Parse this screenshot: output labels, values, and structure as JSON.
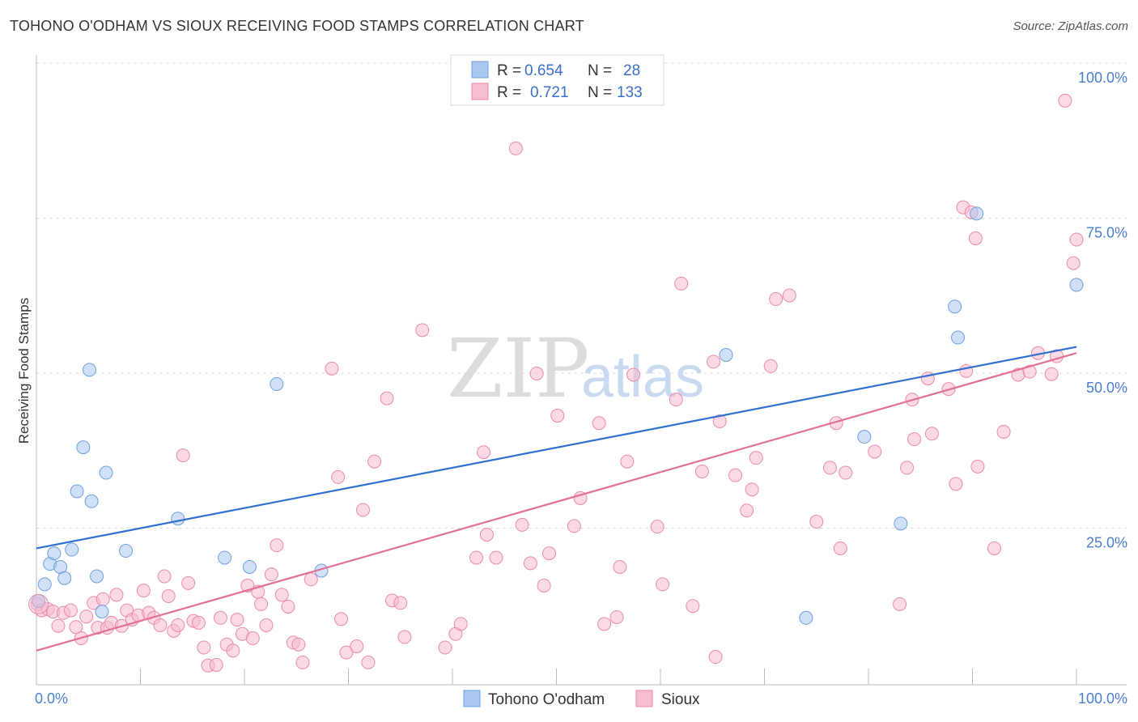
{
  "title": "TOHONO O'ODHAM VS SIOUX RECEIVING FOOD STAMPS CORRELATION CHART",
  "source": "Source: ZipAtlas.com",
  "watermark": {
    "zip": "ZIP",
    "atlas": "atlas"
  },
  "legend": {
    "r_label": "R =",
    "n_label": "N =",
    "rows": [
      {
        "name": "Tohono O'odham",
        "r": "0.654",
        "n": "28",
        "color": "#a9c8f0",
        "stroke": "#6f9fdc"
      },
      {
        "name": "Sioux",
        "r": "0.721",
        "n": "133",
        "color": "#f7bcd0",
        "stroke": "#e98aaa"
      }
    ]
  },
  "chart_data": {
    "type": "scatter",
    "title": "TOHONO O'ODHAM VS SIOUX RECEIVING FOOD STAMPS CORRELATION CHART",
    "xlabel": "",
    "ylabel": "Receiving Food Stamps",
    "xlim": [
      0,
      100
    ],
    "ylim": [
      0,
      100
    ],
    "x_tick_labels": [
      "0.0%",
      "100.0%"
    ],
    "y_ticks": [
      25,
      50,
      75,
      100
    ],
    "y_tick_labels": [
      "25.0%",
      "50.0%",
      "75.0%",
      "100.0%"
    ],
    "grid": true,
    "series": [
      {
        "name": "Tohono O'odham",
        "color": "#a9c8f0",
        "line_color": "#2f6fcf",
        "trend": {
          "x": [
            0,
            100
          ],
          "y": [
            22,
            54.5
          ]
        },
        "points": [
          [
            0.2,
            13.5
          ],
          [
            0.8,
            16.2
          ],
          [
            1.3,
            19.5
          ],
          [
            1.7,
            21.2
          ],
          [
            2.3,
            19.0
          ],
          [
            2.7,
            17.2
          ],
          [
            3.4,
            21.8
          ],
          [
            3.9,
            31.2
          ],
          [
            4.5,
            38.3
          ],
          [
            5.1,
            50.8
          ],
          [
            5.3,
            29.6
          ],
          [
            5.8,
            17.5
          ],
          [
            6.3,
            11.8
          ],
          [
            6.7,
            34.2
          ],
          [
            8.6,
            21.6
          ],
          [
            13.6,
            26.8
          ],
          [
            18.1,
            20.5
          ],
          [
            20.5,
            19.0
          ],
          [
            23.1,
            48.5
          ],
          [
            27.4,
            18.4
          ],
          [
            66.3,
            53.2
          ],
          [
            74.0,
            10.8
          ],
          [
            79.6,
            40.0
          ],
          [
            83.1,
            26.0
          ],
          [
            88.3,
            61.0
          ],
          [
            88.6,
            56.0
          ],
          [
            90.4,
            76.0
          ],
          [
            100.0,
            64.5
          ]
        ]
      },
      {
        "name": "Sioux",
        "color": "#f7bcd0",
        "line_color": "#e0709a",
        "trend": {
          "x": [
            0,
            100
          ],
          "y": [
            5.5,
            53.5
          ]
        },
        "points": [
          [
            0.1,
            13.0
          ],
          [
            0.5,
            12.0
          ],
          [
            1.1,
            12.2
          ],
          [
            1.6,
            11.8
          ],
          [
            2.1,
            9.5
          ],
          [
            2.6,
            11.6
          ],
          [
            3.3,
            12.0
          ],
          [
            3.8,
            9.3
          ],
          [
            4.3,
            7.5
          ],
          [
            4.8,
            11.0
          ],
          [
            5.5,
            13.2
          ],
          [
            5.9,
            9.2
          ],
          [
            6.4,
            13.8
          ],
          [
            6.8,
            9.2
          ],
          [
            7.2,
            10.0
          ],
          [
            7.7,
            14.5
          ],
          [
            8.2,
            9.5
          ],
          [
            8.7,
            12.0
          ],
          [
            9.2,
            10.5
          ],
          [
            9.8,
            11.2
          ],
          [
            10.3,
            15.2
          ],
          [
            10.8,
            11.6
          ],
          [
            11.3,
            10.8
          ],
          [
            11.9,
            9.6
          ],
          [
            12.3,
            17.5
          ],
          [
            12.7,
            14.3
          ],
          [
            13.2,
            8.7
          ],
          [
            13.6,
            9.6
          ],
          [
            14.1,
            37.0
          ],
          [
            14.6,
            16.4
          ],
          [
            15.1,
            10.3
          ],
          [
            15.6,
            10.0
          ],
          [
            16.1,
            6.0
          ],
          [
            16.5,
            3.1
          ],
          [
            17.3,
            3.2
          ],
          [
            17.7,
            10.8
          ],
          [
            18.3,
            6.5
          ],
          [
            18.9,
            5.5
          ],
          [
            19.3,
            10.5
          ],
          [
            19.8,
            8.2
          ],
          [
            20.3,
            16.0
          ],
          [
            20.8,
            7.5
          ],
          [
            21.3,
            15.0
          ],
          [
            21.6,
            13.0
          ],
          [
            22.1,
            9.6
          ],
          [
            22.6,
            17.8
          ],
          [
            23.1,
            22.5
          ],
          [
            23.6,
            14.5
          ],
          [
            24.2,
            12.6
          ],
          [
            24.7,
            6.8
          ],
          [
            25.2,
            6.5
          ],
          [
            25.6,
            3.6
          ],
          [
            26.4,
            17.0
          ],
          [
            28.4,
            51.0
          ],
          [
            29.0,
            33.5
          ],
          [
            29.3,
            10.6
          ],
          [
            29.8,
            5.2
          ],
          [
            30.8,
            6.2
          ],
          [
            31.4,
            28.2
          ],
          [
            31.9,
            3.6
          ],
          [
            32.5,
            36.0
          ],
          [
            33.7,
            46.2
          ],
          [
            34.2,
            13.6
          ],
          [
            35.0,
            13.2
          ],
          [
            35.4,
            7.7
          ],
          [
            37.1,
            57.2
          ],
          [
            39.3,
            6.0
          ],
          [
            40.3,
            8.2
          ],
          [
            40.8,
            9.8
          ],
          [
            42.3,
            20.5
          ],
          [
            43.0,
            37.5
          ],
          [
            43.3,
            24.2
          ],
          [
            44.2,
            20.5
          ],
          [
            46.1,
            86.5
          ],
          [
            46.7,
            25.8
          ],
          [
            47.5,
            19.6
          ],
          [
            48.1,
            50.2
          ],
          [
            48.8,
            16.0
          ],
          [
            49.3,
            21.2
          ],
          [
            50.1,
            43.4
          ],
          [
            51.7,
            25.6
          ],
          [
            52.3,
            30.1
          ],
          [
            54.1,
            42.2
          ],
          [
            54.6,
            9.8
          ],
          [
            55.8,
            10.9
          ],
          [
            56.1,
            19.0
          ],
          [
            56.8,
            36.0
          ],
          [
            57.4,
            50.0
          ],
          [
            59.7,
            25.5
          ],
          [
            60.2,
            16.2
          ],
          [
            61.5,
            46.0
          ],
          [
            62.0,
            64.7
          ],
          [
            63.1,
            12.7
          ],
          [
            64.0,
            34.4
          ],
          [
            65.1,
            52.1
          ],
          [
            65.3,
            4.5
          ],
          [
            65.7,
            42.5
          ],
          [
            67.2,
            33.8
          ],
          [
            68.3,
            28.1
          ],
          [
            68.8,
            31.5
          ],
          [
            69.2,
            36.6
          ],
          [
            70.6,
            51.4
          ],
          [
            71.1,
            62.2
          ],
          [
            72.4,
            62.8
          ],
          [
            75.0,
            26.3
          ],
          [
            76.3,
            35.0
          ],
          [
            76.9,
            42.2
          ],
          [
            77.3,
            22.0
          ],
          [
            77.8,
            34.2
          ],
          [
            80.6,
            37.6
          ],
          [
            83.0,
            13.0
          ],
          [
            83.7,
            35.0
          ],
          [
            84.2,
            46.0
          ],
          [
            84.4,
            39.6
          ],
          [
            85.7,
            49.4
          ],
          [
            86.1,
            40.5
          ],
          [
            87.7,
            47.7
          ],
          [
            88.4,
            32.4
          ],
          [
            89.1,
            77.0
          ],
          [
            89.4,
            50.6
          ],
          [
            89.9,
            76.2
          ],
          [
            90.3,
            72.0
          ],
          [
            90.5,
            35.2
          ],
          [
            92.1,
            22.0
          ],
          [
            93.0,
            40.8
          ],
          [
            94.4,
            50.0
          ],
          [
            95.5,
            50.5
          ],
          [
            96.3,
            53.5
          ],
          [
            97.6,
            50.1
          ],
          [
            98.1,
            53.0
          ],
          [
            98.9,
            94.2
          ],
          [
            100.0,
            71.8
          ],
          [
            99.7,
            68.0
          ]
        ]
      }
    ]
  }
}
